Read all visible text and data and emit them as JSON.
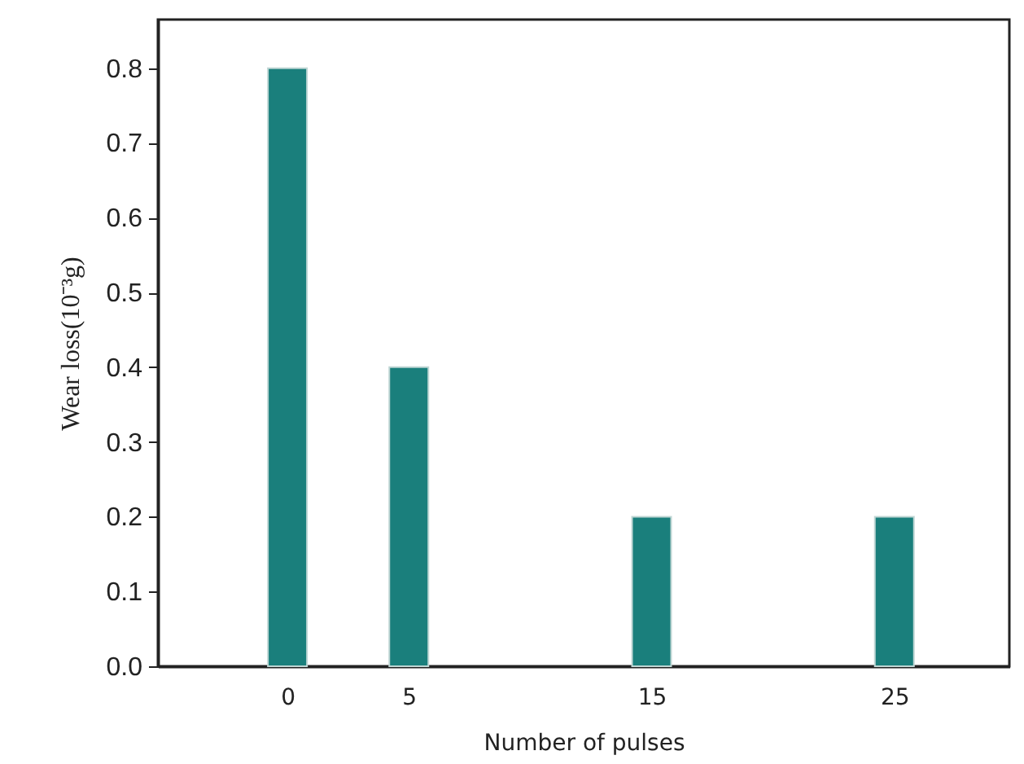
{
  "chart_data": {
    "type": "bar",
    "xlabel": "Number of pulses",
    "ylabel": "Wear loss(10⁻³g)",
    "x": [
      0,
      5,
      15,
      25
    ],
    "values": [
      0.8,
      0.4,
      0.2,
      0.2
    ],
    "color": "#1a7f7c",
    "xlim": [
      -5,
      29.4
    ],
    "xticks": [
      0,
      5,
      15,
      25
    ],
    "ylim": [
      0,
      0.865
    ],
    "yticks": [
      {
        "value": 0,
        "label": "0.0"
      },
      {
        "value": 0.1,
        "label": "0.1"
      },
      {
        "value": 0.2,
        "label": "0.2"
      },
      {
        "value": 0.3,
        "label": "0.3"
      },
      {
        "value": 0.4,
        "label": "0.4"
      },
      {
        "value": 0.5,
        "label": "0.5"
      },
      {
        "value": 0.6,
        "label": "0.6"
      },
      {
        "value": 0.7,
        "label": "0.7"
      },
      {
        "value": 0.8,
        "label": "0.8"
      }
    ],
    "grid": false
  }
}
